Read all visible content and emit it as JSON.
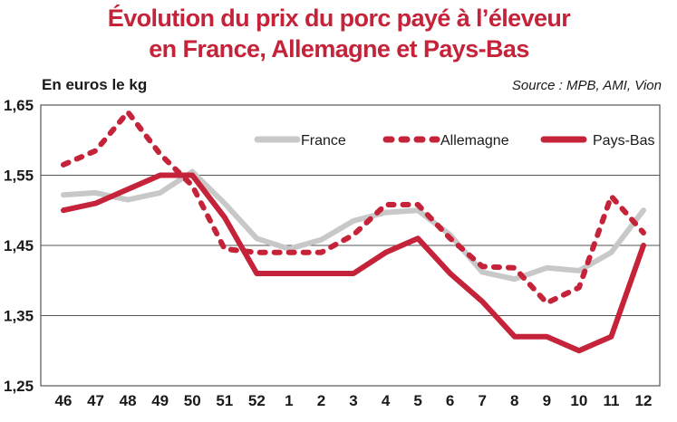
{
  "chart_data": {
    "type": "line",
    "title": [
      "Évolution du prix du porc payé à l’éleveur",
      "en France, Allemagne et Pays-Bas"
    ],
    "ylabel": "En euros le kg",
    "source": "Source : MPB, AMI, Vion",
    "categories": [
      "46",
      "47",
      "48",
      "49",
      "50",
      "51",
      "52",
      "1",
      "2",
      "3",
      "4",
      "5",
      "6",
      "7",
      "8",
      "9",
      "10",
      "11",
      "12"
    ],
    "ylim": [
      1.25,
      1.65
    ],
    "yticks": [
      "1,65",
      "1,55",
      "1,45",
      "1,35",
      "1,25"
    ],
    "ytick_values": [
      1.65,
      1.55,
      1.45,
      1.35,
      1.25
    ],
    "grid": "horizontal",
    "legend_position": "top-right",
    "series": [
      {
        "name": "France",
        "color": "#c8c8c8",
        "style": "solid",
        "values": [
          1.522,
          1.525,
          1.515,
          1.525,
          1.555,
          1.51,
          1.46,
          1.445,
          1.458,
          1.485,
          1.497,
          1.5,
          1.465,
          1.412,
          1.402,
          1.418,
          1.414,
          1.44,
          1.5
        ]
      },
      {
        "name": "Allemagne",
        "color": "#c4233a",
        "style": "dotted",
        "values": [
          1.565,
          1.585,
          1.64,
          1.58,
          1.535,
          1.445,
          1.44,
          1.44,
          1.44,
          1.465,
          1.508,
          1.508,
          1.46,
          1.42,
          1.418,
          1.368,
          1.39,
          1.52,
          1.468
        ]
      },
      {
        "name": "Pays-Bas",
        "color": "#c4233a",
        "style": "solid",
        "values": [
          1.5,
          1.51,
          1.53,
          1.55,
          1.55,
          1.49,
          1.41,
          1.41,
          1.41,
          1.41,
          1.44,
          1.46,
          1.41,
          1.37,
          1.32,
          1.32,
          1.3,
          1.32,
          1.45
        ]
      }
    ]
  }
}
